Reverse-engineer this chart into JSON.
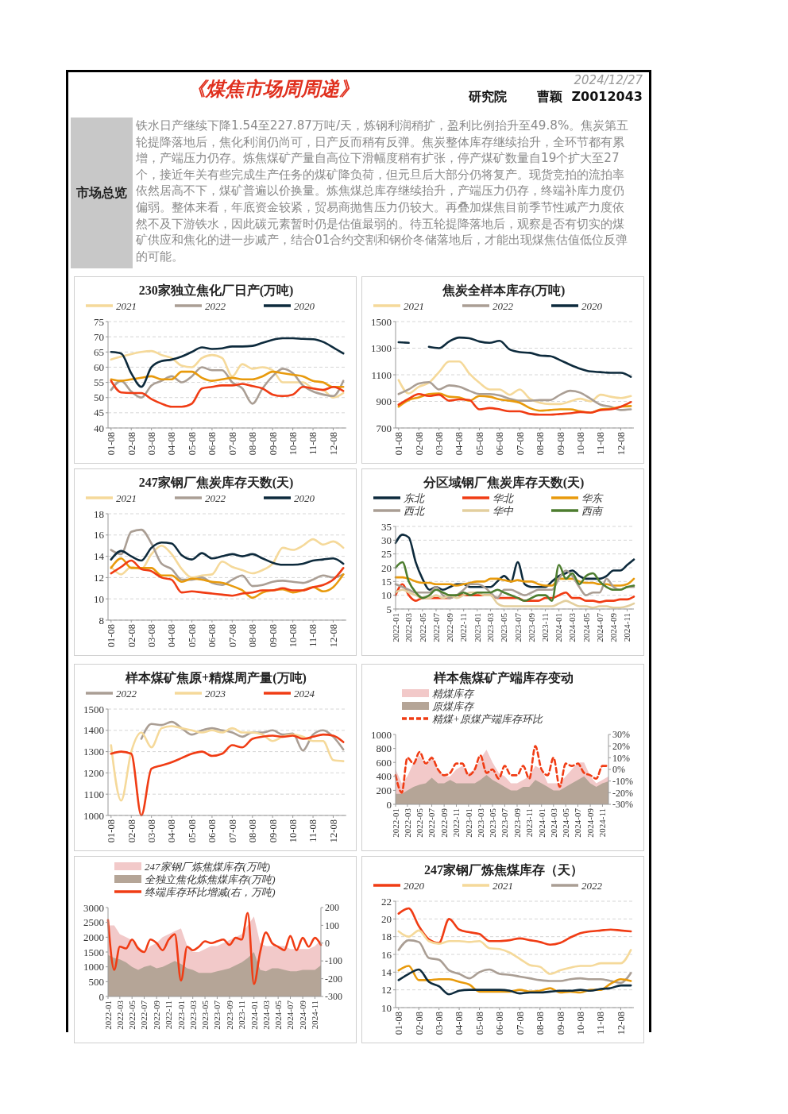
{
  "chart_data": [
    {
      "type": "other",
      "title": "《煤焦市场周周递》",
      "annotations": [
        "2024/12/27",
        "研究院",
        "曹颖  Z0012043",
        "市场总览",
        "铁水日产继续下降1.54至227.87万吨/天，炼钢利润稍扩，盈利比例抬升至49.8%。焦炭第五轮提降落地后，焦化利润仍尚可，日产反而稍有反弹。焦炭整体库存继续抬升，全环节都有累增，产端压力仍存。炼焦煤矿产量自高位下滑幅度稍有扩张，停产煤矿数量自19个扩大至27个，接近年关有些完成生产任务的煤矿降负荷，但元旦后大部分仍将复产。现货竞拍的流拍率依然居高不下，煤矿普遍以价换量。炼焦煤总库存继续抬升，产端压力仍存，终端补库力度仍偏弱。整体来看，年底资金较紧，贸易商抛售压力仍较大。再叠加煤焦目前季节性减产力度依然不及下游铁水，因此碳元素暂时仍是估值最弱的。待五轮提降落地后，观察是否有切实的煤矿供应和焦化的进一步减产，结合01合约交割和钢价冬储落地后，才能出现煤焦估值低位反弹的可能。"
      ]
    },
    {
      "type": "line",
      "title": "230家独立焦化厂日产(万吨)",
      "legend": "top",
      "grid": "y",
      "categories": [
        "01-08",
        null,
        "02-08",
        null,
        "03-08",
        null,
        "04-08",
        null,
        "05-08",
        null,
        "06-08",
        null,
        "07-08",
        null,
        "08-08",
        null,
        "09-08",
        null,
        "10-08",
        null,
        "11-08",
        null,
        "12-08",
        null
      ],
      "ylim": [
        40,
        75
      ],
      "yticks": [
        40,
        45,
        50,
        55,
        60,
        65,
        70,
        75
      ],
      "series": [
        {
          "name": "2021",
          "color": "#f5d99a",
          "values": [
            62.5,
            63.5,
            64.3,
            65,
            65.3,
            64,
            63,
            60.5,
            60,
            63,
            64,
            63,
            57,
            61,
            59.5,
            60,
            59,
            55,
            55,
            55,
            53,
            52.5,
            50,
            51.5
          ]
        },
        {
          "name": "2022",
          "color": "#aa9e94",
          "values": [
            52.5,
            55.5,
            52,
            50,
            54,
            55.5,
            57,
            55,
            57,
            60,
            59,
            59,
            55,
            53,
            48,
            53,
            57,
            59.5,
            58,
            54,
            52,
            51,
            50.5,
            55.5
          ]
        },
        {
          "color": "#e89a0c",
          "values": [
            56,
            55.5,
            56,
            56.5,
            57,
            56,
            56,
            58.5,
            58.5,
            56.5,
            55.5,
            56,
            56.5,
            56,
            56,
            57,
            58.5,
            58,
            57.5,
            57,
            55.5,
            55,
            53.5,
            53.5
          ]
        },
        {
          "color": "#f03c14",
          "values": [
            55.5,
            51.7,
            51.5,
            51.5,
            49.5,
            48,
            47,
            47,
            48,
            53,
            53.5,
            54,
            54,
            54.5,
            53.8,
            53,
            51,
            50.5,
            51,
            53.5,
            53,
            52.5,
            53.5,
            52.2
          ]
        },
        {
          "name": "2020",
          "color": "#0d2a3c",
          "values": [
            65,
            64.5,
            58,
            53.5,
            60,
            62,
            62.5,
            63.5,
            65,
            66.5,
            66,
            66.2,
            66.8,
            66.8,
            67,
            68,
            69,
            69.5,
            69.5,
            69.3,
            69.2,
            68.3,
            66.5,
            64.5
          ]
        }
      ]
    },
    {
      "type": "line",
      "title": "焦炭全样本库存(万吨)",
      "legend": "top",
      "grid": "y",
      "categories": [
        "01-08",
        null,
        "02-08",
        null,
        "03-08",
        null,
        "04-08",
        null,
        "05-08",
        null,
        "06-08",
        null,
        "07-08",
        null,
        "08-08",
        null,
        "09-08",
        null,
        "10-08",
        null,
        "11-08",
        null,
        "12-08",
        null
      ],
      "ylim": [
        700,
        1500
      ],
      "yticks": [
        700,
        900,
        1100,
        1300,
        1500
      ],
      "series": [
        {
          "name": "2021",
          "color": "#f5d99a",
          "values": [
            1060,
            960,
            1010,
            1040,
            1120,
            1200,
            1200,
            1110,
            1040,
            990,
            990,
            950,
            990,
            920,
            890,
            880,
            880,
            900,
            920,
            900,
            950,
            935,
            925,
            940
          ]
        },
        {
          "name": "2022",
          "color": "#aa9e94",
          "values": [
            955,
            990,
            1035,
            1045,
            990,
            1020,
            1010,
            980,
            955,
            955,
            945,
            920,
            905,
            905,
            910,
            910,
            950,
            980,
            965,
            920,
            875,
            860,
            835,
            840
          ]
        },
        {
          "color": "#e89a0c",
          "values": [
            860,
            910,
            930,
            955,
            960,
            935,
            930,
            905,
            940,
            935,
            915,
            905,
            890,
            850,
            830,
            835,
            840,
            840,
            825,
            815,
            840,
            845,
            860,
            865
          ]
        },
        {
          "color": "#f03c14",
          "values": [
            875,
            920,
            955,
            940,
            950,
            905,
            915,
            910,
            840,
            850,
            840,
            825,
            825,
            805,
            800,
            800,
            805,
            810,
            820,
            815,
            835,
            840,
            860,
            895
          ]
        },
        {
          "name": "2020",
          "color": "#0d2a3c",
          "values": [
            1345,
            1340,
            null,
            1310,
            1300,
            1350,
            1380,
            1375,
            1350,
            1340,
            1355,
            1290,
            1270,
            1265,
            1245,
            1240,
            1210,
            1175,
            1145,
            1125,
            1120,
            1115,
            1115,
            1085
          ]
        }
      ]
    },
    {
      "type": "line",
      "title": "247家钢厂焦炭库存天数(天)",
      "legend": "top",
      "grid": "y",
      "categories": [
        "01-08",
        null,
        "02-08",
        null,
        "03-08",
        null,
        "04-08",
        null,
        "05-08",
        null,
        "06-08",
        null,
        "07-08",
        null,
        "08-08",
        null,
        "09-08",
        null,
        "10-08",
        null,
        "11-08",
        null,
        "12-08",
        null
      ],
      "ylim": [
        8,
        18
      ],
      "yticks": [
        8,
        10,
        12,
        14,
        16,
        18
      ],
      "series": [
        {
          "name": "2021",
          "color": "#f5d99a",
          "values": [
            13,
            12.3,
            13,
            12.8,
            14.2,
            15,
            14.2,
            12.8,
            12,
            12.2,
            12.3,
            13.5,
            13,
            12.7,
            12.4,
            12.7,
            13.3,
            14.8,
            14.6,
            15,
            15.6,
            15.1,
            15.4,
            14.8
          ]
        },
        {
          "name": "2022",
          "color": "#aa9e94",
          "values": [
            14.6,
            14.2,
            16.3,
            16.5,
            15.2,
            13.3,
            12.8,
            11.8,
            11.8,
            12,
            11.5,
            11.3,
            11.8,
            12.2,
            11.2,
            11.3,
            11.6,
            11.7,
            11.6,
            11.5,
            11.8,
            12.2,
            12,
            12.3
          ]
        },
        {
          "color": "#e89a0c",
          "values": [
            12.9,
            13.8,
            12.9,
            12.9,
            12.9,
            12.2,
            12.2,
            11.6,
            11.9,
            11.8,
            11.6,
            11.5,
            11.2,
            10.8,
            10.1,
            10.6,
            10.8,
            10.9,
            10.6,
            10.8,
            11.1,
            10.7,
            11.1,
            12.3
          ]
        },
        {
          "name": "2020",
          "color": "#0d2a3c",
          "values": [
            13.7,
            14.5,
            14,
            13.6,
            14.8,
            15.3,
            15.2,
            14.1,
            13.7,
            14.3,
            13.8,
            14,
            14.2,
            14,
            14.2,
            13.8,
            13.4,
            13.2,
            13.2,
            13.3,
            13.6,
            13.7,
            13.8,
            13.3
          ]
        },
        {
          "color": "#f03c14",
          "values": [
            12.4,
            13,
            13.6,
            12.8,
            12.6,
            12,
            11.8,
            10.6,
            10.7,
            10.6,
            10.5,
            10.4,
            10.3,
            10.5,
            10.6,
            10.8,
            10.8,
            11,
            10.8,
            10.8,
            11.1,
            11.3,
            11.8,
            12.9
          ]
        }
      ]
    },
    {
      "type": "line",
      "title": "分区域钢厂焦炭库存天数(天)",
      "legend": "top",
      "grid": "y",
      "x": [
        "2022-01",
        "2022-02",
        "2022-03",
        "2022-04",
        "2022-05",
        "2022-06",
        "2022-07",
        "2022-08",
        "2022-09",
        "2022-10",
        "2022-11",
        "2022-12",
        "2023-01",
        "2023-02",
        "2023-03",
        "2023-04",
        "2023-05",
        "2023-06",
        "2023-07",
        "2023-08",
        "2023-09",
        "2023-10",
        "2023-11",
        "2023-12",
        "2024-01",
        "2024-02",
        "2024-03",
        "2024-04",
        "2024-05",
        "2024-06",
        "2024-07",
        "2024-08",
        "2024-09",
        "2024-10",
        "2024-11",
        "2024-12"
      ],
      "xlim": [
        "2022-01",
        "2024-12"
      ],
      "xticks": [
        "2022-01",
        "2022-03",
        "2022-05",
        "2022-07",
        "2022-09",
        "2022-11",
        "2023-01",
        "2023-03",
        "2023-05",
        "2023-07",
        "2023-09",
        "2023-11",
        "2024-01",
        "2024-03",
        "2024-05",
        "2024-07",
        "2024-09",
        "2024-11"
      ],
      "ylim": [
        5,
        35
      ],
      "yticks": [
        5,
        10,
        15,
        20,
        25,
        30,
        35
      ],
      "series": [
        {
          "name": "东北",
          "color": "#0d2a3c",
          "values": [
            29,
            32,
            31,
            22,
            16,
            12,
            13,
            12,
            13,
            14,
            14,
            13,
            13,
            13,
            13,
            15,
            17,
            15,
            22,
            14,
            13,
            13,
            13,
            15,
            17,
            18,
            19,
            17,
            16,
            16,
            16,
            17,
            19,
            19,
            21,
            23
          ]
        },
        {
          "name": "华北",
          "color": "#f03c14",
          "values": [
            10,
            14,
            10,
            8,
            9,
            9,
            9,
            9,
            9,
            10,
            10,
            10,
            10,
            10,
            10,
            9,
            9,
            9,
            9,
            8,
            8,
            8,
            9,
            9,
            10,
            11,
            9,
            9,
            8,
            8,
            7.5,
            8,
            8,
            8.5,
            8.5,
            9.5
          ]
        },
        {
          "name": "华东",
          "color": "#e89a0c",
          "values": [
            16.5,
            16.5,
            16,
            15,
            14.5,
            14.5,
            14,
            14,
            14,
            13.5,
            14,
            14.5,
            15,
            15,
            16,
            16,
            15.5,
            15,
            15.5,
            15,
            15,
            14,
            13.5,
            13.5,
            16,
            16,
            16,
            15,
            14.5,
            14.5,
            14,
            14,
            13.5,
            13.5,
            14,
            16
          ]
        },
        {
          "name": "西北",
          "color": "#aa9e94",
          "values": [
            14,
            13,
            12,
            11,
            11,
            11,
            13,
            10,
            9,
            10,
            12,
            14,
            14,
            13,
            11,
            9,
            12,
            12,
            11,
            10,
            11,
            12,
            12,
            12,
            16,
            19,
            17,
            13,
            10,
            11,
            11,
            16,
            13,
            12,
            13,
            13
          ]
        },
        {
          "name": "华中",
          "color": "#e3cf9e",
          "values": [
            11,
            12,
            11,
            10,
            9,
            9,
            10,
            9,
            10,
            9,
            10,
            11,
            11,
            10,
            10,
            7,
            6,
            6,
            6,
            6,
            6,
            6,
            6,
            6,
            7,
            8,
            7,
            6,
            6,
            5.5,
            6,
            6,
            5.5,
            5.5,
            6,
            7
          ]
        },
        {
          "name": "西南",
          "color": "#4d7d2f",
          "values": [
            20,
            22,
            15,
            11,
            9,
            10,
            12,
            11,
            10,
            10,
            11,
            10,
            11,
            11,
            11,
            12,
            11,
            10,
            9,
            8,
            9,
            10,
            10,
            8,
            21,
            16,
            18,
            14,
            17,
            18,
            15,
            13,
            12,
            12,
            13,
            13.5
          ]
        }
      ]
    },
    {
      "type": "line",
      "title": "样本煤矿焦原+精煤周产量(万吨)",
      "legend": "top",
      "grid": "y",
      "categories": [
        "01-08",
        null,
        "02-08",
        null,
        "03-08",
        null,
        "04-08",
        null,
        "05-08",
        null,
        "06-08",
        null,
        "07-08",
        null,
        "08-08",
        null,
        "09-08",
        null,
        "10-08",
        null,
        "11-08",
        null,
        "12-08",
        null
      ],
      "ylim": [
        1000,
        1500
      ],
      "yticks": [
        1000,
        1100,
        1200,
        1300,
        1400,
        1500
      ],
      "series": [
        {
          "name": "2022",
          "color": "#aa9e94",
          "values": [
            null,
            null,
            null,
            1360,
            1430,
            1425,
            1440,
            1410,
            1380,
            1400,
            1410,
            1400,
            1390,
            1370,
            1390,
            1390,
            1400,
            1380,
            1385,
            1305,
            1380,
            1400,
            1370,
            1310
          ]
        },
        {
          "name": "2023",
          "color": "#f5d99a",
          "values": [
            1330,
            1070,
            1300,
            1390,
            1320,
            1410,
            1420,
            1410,
            1400,
            1390,
            1400,
            1390,
            1410,
            1390,
            1390,
            1380,
            1350,
            1370,
            1380,
            1370,
            1350,
            1350,
            1260,
            1255
          ]
        },
        {
          "name": "2024",
          "color": "#f03c14",
          "values": [
            1290,
            1300,
            1290,
            1000,
            1220,
            1235,
            1250,
            1270,
            1290,
            1300,
            1280,
            1290,
            1330,
            1320,
            1360,
            1370,
            1375,
            1370,
            1375,
            1360,
            1370,
            1380,
            1375,
            1345
          ]
        }
      ]
    },
    {
      "type": "line",
      "title": "样本焦煤矿产端库存变动",
      "legend": "top left",
      "x": [
        "2022-01",
        "2022-02",
        "2022-03",
        "2022-04",
        "2022-05",
        "2022-06",
        "2022-07",
        "2022-08",
        "2022-09",
        "2022-10",
        "2022-11",
        "2022-12",
        "2023-01",
        "2023-02",
        "2023-03",
        "2023-04",
        "2023-05",
        "2023-06",
        "2023-07",
        "2023-08",
        "2023-09",
        "2023-10",
        "2023-11",
        "2023-12",
        "2024-01",
        "2024-02",
        "2024-03",
        "2024-04",
        "2024-05",
        "2024-06",
        "2024-07",
        "2024-08",
        "2024-09",
        "2024-10",
        "2024-11",
        "2024-12"
      ],
      "xlim": [
        "2022-01",
        "2024-12"
      ],
      "xticks": [
        "2022-01",
        "2022-03",
        "2022-05",
        "2022-07",
        "2022-09",
        "2022-11",
        "2023-01",
        "2023-03",
        "2023-05",
        "2023-07",
        "2023-09",
        "2023-11",
        "2024-01",
        "2024-03",
        "2024-05",
        "2024-07",
        "2024-09",
        "2024-11"
      ],
      "ylim": [
        0,
        1000
      ],
      "yticks": [
        0,
        200,
        400,
        600,
        800,
        1000
      ],
      "y2lim": [
        -30,
        30
      ],
      "y2ticks": [
        {
          "value": -30,
          "label": "-30%"
        },
        {
          "value": -20,
          "label": "-20%"
        },
        {
          "value": -10,
          "label": "-10%"
        },
        {
          "value": 0,
          "label": "0%"
        },
        {
          "value": 10,
          "label": "10%"
        },
        {
          "value": 20,
          "label": "20%"
        },
        {
          "value": 30,
          "label": "30%"
        }
      ],
      "series": [
        {
          "name": "精煤库存",
          "type": "area",
          "color": "#f2c9c9",
          "values": [
            500,
            300,
            400,
            600,
            700,
            550,
            700,
            500,
            400,
            400,
            500,
            550,
            450,
            500,
            650,
            780,
            600,
            450,
            400,
            300,
            300,
            350,
            400,
            550,
            500,
            300,
            300,
            300,
            400,
            500,
            600,
            600,
            400,
            300,
            350,
            400
          ]
        },
        {
          "name": "原煤库存",
          "type": "area",
          "color": "#b5a597",
          "values": [
            150,
            150,
            200,
            250,
            280,
            300,
            380,
            300,
            300,
            350,
            300,
            300,
            300,
            300,
            350,
            420,
            350,
            300,
            250,
            200,
            200,
            250,
            250,
            350,
            300,
            250,
            200,
            200,
            250,
            300,
            350,
            400,
            300,
            250,
            300,
            330
          ]
        },
        {
          "name": "精煤+原煤产端库存环比",
          "type": "line",
          "axis": "y2",
          "line_style": "dashed",
          "color": "#f03c14",
          "values": [
            -5,
            -20,
            10,
            5,
            15,
            5,
            10,
            0,
            -5,
            -3,
            5,
            5,
            -5,
            0,
            12,
            -3,
            0,
            -8,
            3,
            -5,
            -5,
            3,
            -8,
            20,
            0,
            -5,
            10,
            -15,
            5,
            3,
            5,
            -3,
            -5,
            -8,
            3,
            3
          ]
        }
      ]
    },
    {
      "type": "line",
      "legend": "top left",
      "x": [
        "2022-01",
        "2022-02",
        "2022-03",
        "2022-04",
        "2022-05",
        "2022-06",
        "2022-07",
        "2022-08",
        "2022-09",
        "2022-10",
        "2022-11",
        "2022-12",
        "2023-01",
        "2023-02",
        "2023-03",
        "2023-04",
        "2023-05",
        "2023-06",
        "2023-07",
        "2023-08",
        "2023-09",
        "2023-10",
        "2023-11",
        "2023-12",
        "2024-01",
        "2024-02",
        "2024-03",
        "2024-04",
        "2024-05",
        "2024-06",
        "2024-07",
        "2024-08",
        "2024-09",
        "2024-10",
        "2024-11",
        "2024-12"
      ],
      "xlim": [
        "2022-01",
        "2024-12"
      ],
      "xticks": [
        "2022-01",
        "2022-03",
        "2022-05",
        "2022-07",
        "2022-09",
        "2022-11",
        "2023-01",
        "2023-03",
        "2023-05",
        "2023-07",
        "2023-09",
        "2023-11",
        "2024-01",
        "2024-03",
        "2024-05",
        "2024-07",
        "2024-09",
        "2024-11"
      ],
      "ylim": [
        0,
        3000
      ],
      "yticks": [
        0,
        500,
        1000,
        1500,
        2000,
        2500,
        3000
      ],
      "y2lim": [
        -300,
        200
      ],
      "y2ticks": [
        -300,
        -200,
        -100,
        0,
        100,
        200
      ],
      "series": [
        {
          "name": "247家钢厂炼焦煤库存(万吨)",
          "type": "area",
          "color": "#f2c9c9",
          "values": [
            2400,
            2400,
            2100,
            2000,
            1900,
            1700,
            1500,
            1700,
            1800,
            2000,
            2100,
            2200,
            2300,
            1700,
            1500,
            1500,
            1600,
            1700,
            1700,
            1800,
            1900,
            2000,
            2100,
            2400,
            2700,
            1800,
            1700,
            1700,
            1700,
            1700,
            1600,
            1600,
            1600,
            1600,
            1700,
            1900
          ]
        },
        {
          "name": "全独立焦化炼焦煤库存(万吨)",
          "type": "area",
          "color": "#b5a597",
          "values": [
            1400,
            1300,
            1250,
            1150,
            1000,
            900,
            1000,
            1050,
            950,
            1000,
            1100,
            1200,
            1100,
            950,
            900,
            800,
            800,
            800,
            850,
            900,
            950,
            1050,
            1150,
            1300,
            1500,
            900,
            850,
            950,
            950,
            900,
            850,
            850,
            900,
            900,
            900,
            1050
          ]
        },
        {
          "name": "终端库存环比增减(右，万吨)",
          "type": "line",
          "axis": "y2",
          "color": "#f03c14",
          "values": [
            130,
            -150,
            -20,
            -30,
            20,
            -30,
            -50,
            20,
            0,
            -40,
            20,
            50,
            -210,
            -20,
            -40,
            -20,
            10,
            0,
            10,
            20,
            -10,
            30,
            20,
            170,
            -230,
            -50,
            60,
            0,
            -20,
            -40,
            40,
            -40,
            30,
            -20,
            30,
            -10
          ]
        }
      ]
    },
    {
      "type": "line",
      "title": "247家钢厂炼焦煤库存（天）",
      "legend": "top",
      "grid": "y",
      "categories": [
        "01-08",
        null,
        "02-08",
        null,
        "03-08",
        null,
        "04-08",
        null,
        "05-08",
        null,
        "06-08",
        null,
        "07-08",
        null,
        "08-08",
        null,
        "09-08",
        null,
        "10-08",
        null,
        "11-08",
        null,
        "12-08",
        null
      ],
      "ylim": [
        10,
        22
      ],
      "yticks": [
        10,
        12,
        14,
        16,
        18,
        20,
        22
      ],
      "series": [
        {
          "name": "2020",
          "color": "#f03c14",
          "values": [
            20.6,
            21.2,
            19.2,
            17.7,
            17.3,
            20,
            18.8,
            18.5,
            18.3,
            17.5,
            17.5,
            17.6,
            17.8,
            17.6,
            17.4,
            17.1,
            17.3,
            17.9,
            18.4,
            18.6,
            18.7,
            18.8,
            18.7,
            18.6
          ]
        },
        {
          "name": "2021",
          "color": "#f5d99a",
          "values": [
            18.6,
            18,
            18.7,
            17.5,
            17.2,
            17.5,
            17.5,
            17.4,
            17.5,
            16.7,
            16.6,
            16.2,
            15.5,
            14.8,
            14.6,
            13.8,
            14.2,
            14.5,
            14.7,
            14.7,
            15,
            15,
            15,
            16.5
          ]
        },
        {
          "name": "2022",
          "color": "#aa9e94",
          "values": [
            16.5,
            17.6,
            17.4,
            15.6,
            15.4,
            14.2,
            13.8,
            13.3,
            14,
            14.3,
            13.8,
            13.7,
            13.5,
            13.3,
            13.1,
            13,
            13,
            13.2,
            13.3,
            13.2,
            13.2,
            13,
            12.8,
            13.9
          ]
        },
        {
          "color": "#e89a0c",
          "values": [
            14.2,
            14.7,
            13.1,
            13.1,
            13.2,
            13.2,
            12.9,
            12.6,
            11.8,
            11.8,
            11.8,
            11.8,
            12,
            11.8,
            11.9,
            12.2,
            11.7,
            11.8,
            11.7,
            12,
            12,
            12.7,
            13.2,
            13
          ]
        },
        {
          "color": "#0d2a3c",
          "values": [
            13.1,
            13.8,
            14.3,
            12.9,
            12.4,
            11.5,
            11.9,
            12,
            12,
            12,
            12,
            11.9,
            11.6,
            11.7,
            11.7,
            11.8,
            11.9,
            11.9,
            12,
            11.9,
            12.1,
            12.2,
            12.5,
            12.5
          ]
        }
      ]
    }
  ]
}
